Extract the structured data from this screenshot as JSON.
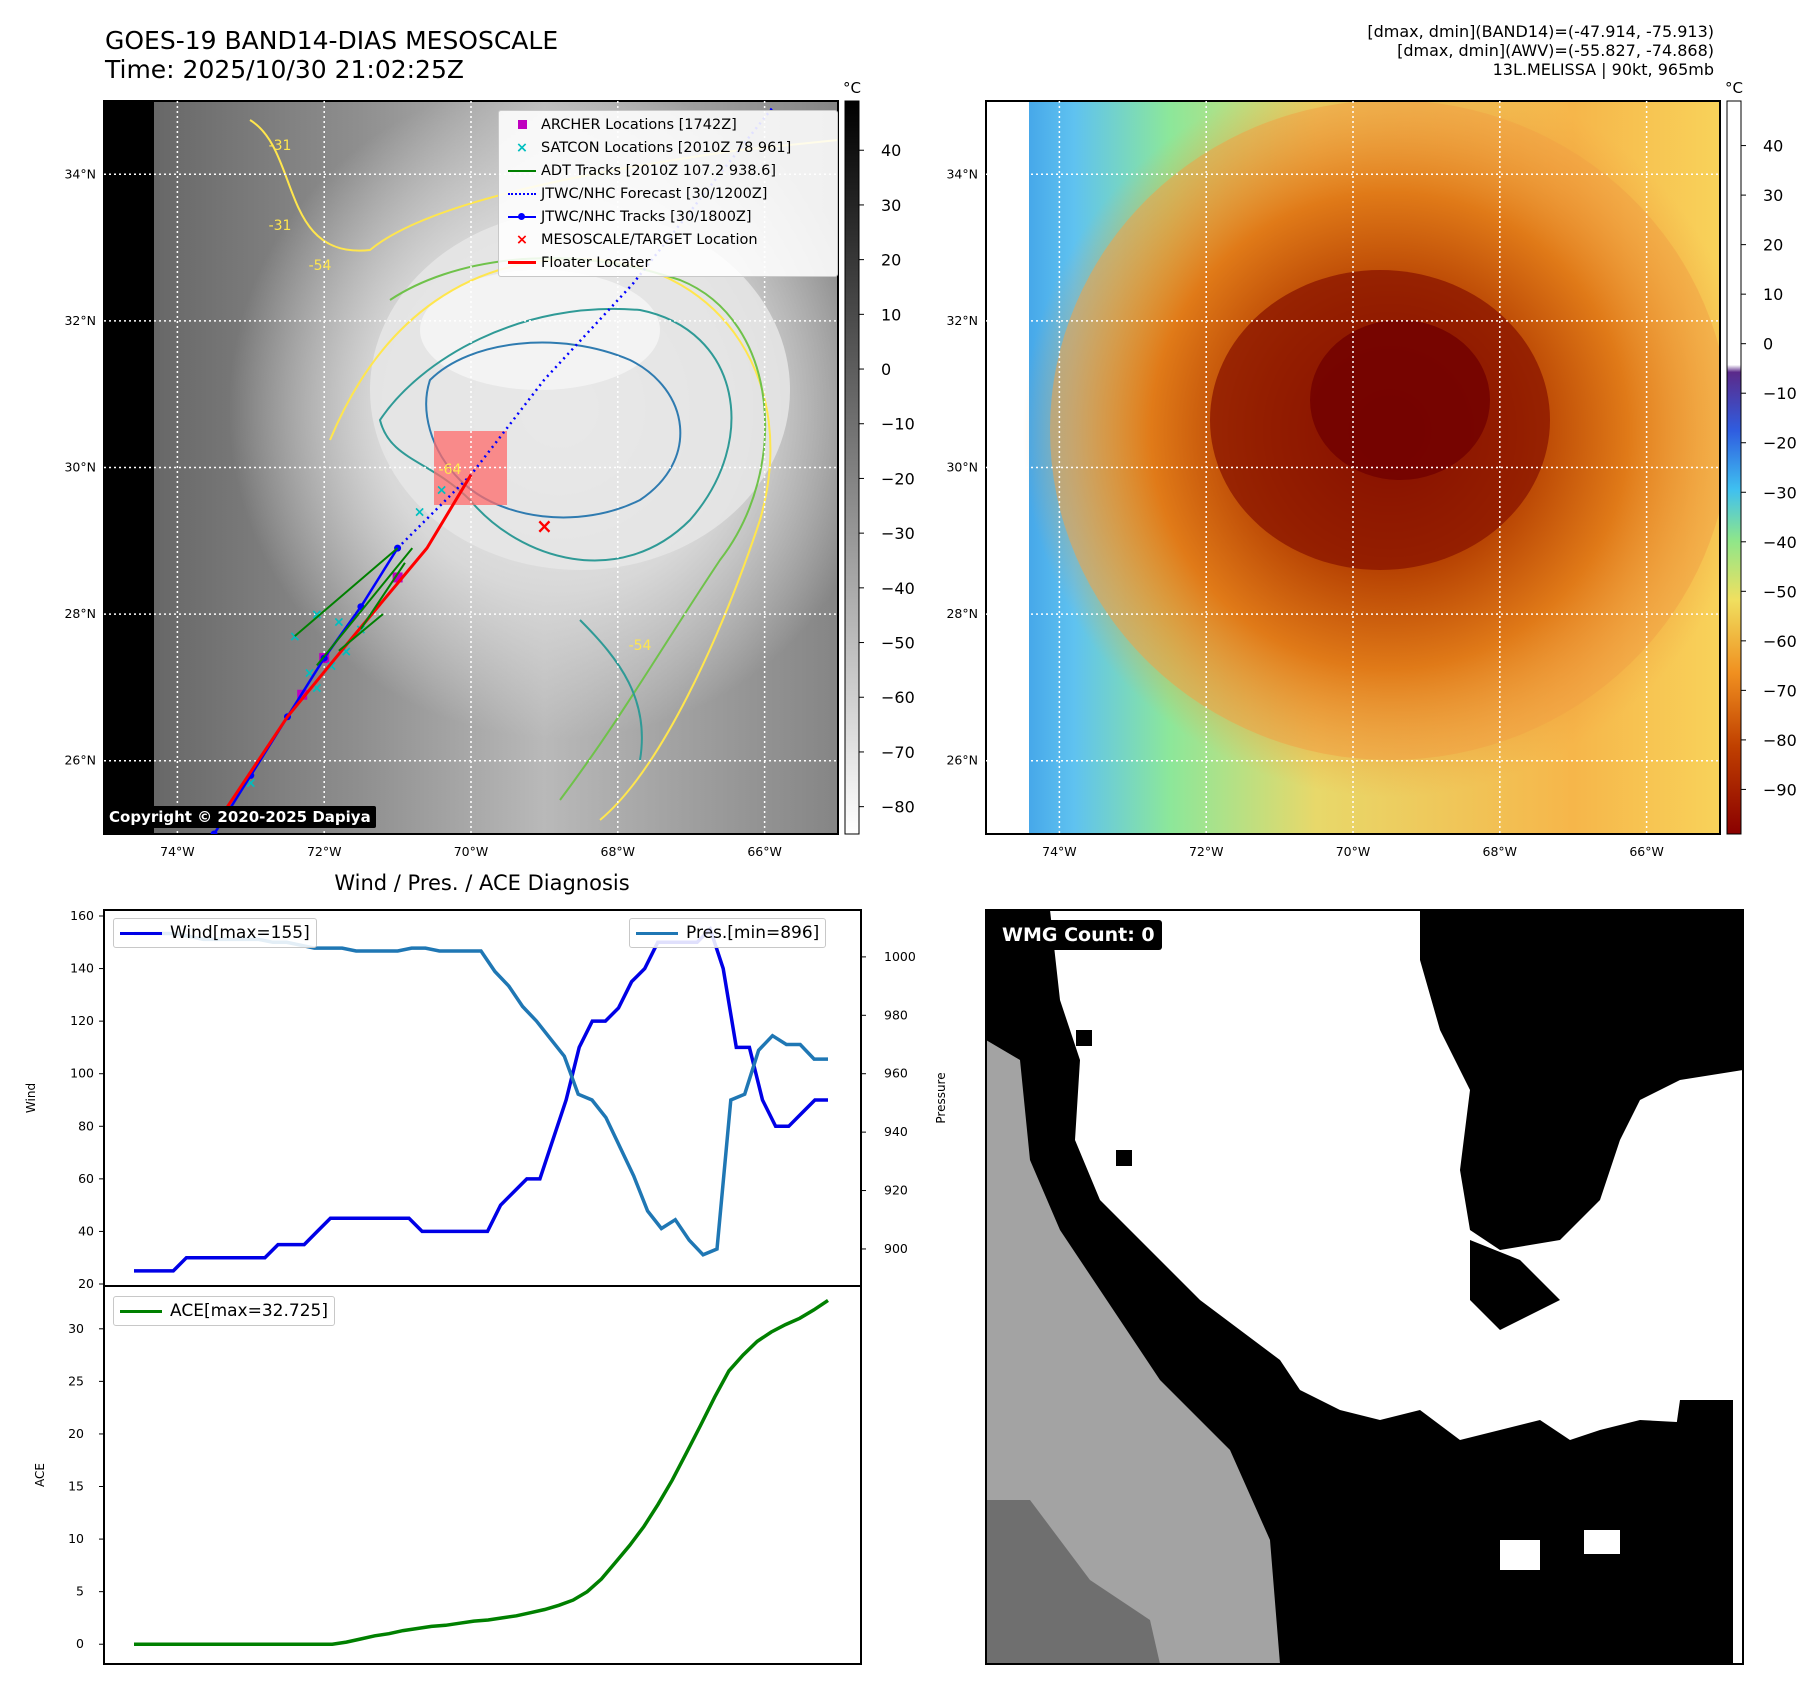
{
  "header": {
    "title_line1": "GOES-19 BAND14-DIAS MESOSCALE",
    "title_line2": "Time: 2025/10/30 21:02:25Z",
    "stats_line1": "[dmax, dmin](BAND14)=(-47.914, -75.913)",
    "stats_line2": "[dmax, dmin](AWV)=(-55.827, -74.868)",
    "stats_line3": "13L.MELISSA | 90kt, 965mb"
  },
  "map_axes": {
    "lon_ticks": [
      "74°W",
      "72°W",
      "70°W",
      "68°W",
      "66°W"
    ],
    "lat_ticks": [
      "34°N",
      "32°N",
      "30°N",
      "28°N",
      "26°N"
    ],
    "lon_range": [
      -75,
      -65
    ],
    "lat_range": [
      25,
      35
    ]
  },
  "ir_colorbar": {
    "unit": "°C",
    "ticks": [
      "40",
      "30",
      "20",
      "10",
      "0",
      "−10",
      "−20",
      "−30",
      "−40",
      "−50",
      "−60",
      "−70",
      "−80"
    ]
  },
  "awv_colorbar": {
    "unit": "°C",
    "ticks": [
      "40",
      "30",
      "20",
      "10",
      "0",
      "−10",
      "−20",
      "−30",
      "−40",
      "−50",
      "−60",
      "−70",
      "−80",
      "−90"
    ]
  },
  "contour_labels": [
    "-31",
    "-54",
    "-64",
    "-31",
    "-54"
  ],
  "legend": {
    "archer": "ARCHER Locations [1742Z]",
    "satcon": "SATCON Locations [2010Z 78 961]",
    "adt": "ADT Tracks [2010Z 107.2 938.6]",
    "forecast": "JTWC/NHC Forecast [30/1200Z]",
    "tracks": "JTWC/NHC Tracks [30/1800Z]",
    "target": "MESOSCALE/TARGET Location",
    "floater": "Floater Locater"
  },
  "legend_colors": {
    "archer": "#bf00bf",
    "satcon": "#00bfbf",
    "adt": "#008000",
    "forecast": "#0000ff",
    "tracks": "#0000ff",
    "target": "#ff0000",
    "floater": "#ff0000"
  },
  "copyright": "Copyright © 2020-2025 Dapiya",
  "diag": {
    "title": "Wind / Pres. / ACE Diagnosis",
    "wind_label": "Wind",
    "pressure_label": "Pressure",
    "ace_label": "ACE",
    "wind_legend": "Wind[max=155]",
    "pres_legend": "Pres.[min=896]",
    "ace_legend": "ACE[max=32.725]",
    "wind_ticks": [
      "160",
      "140",
      "120",
      "100",
      "80",
      "60",
      "40",
      "20"
    ],
    "pres_ticks": [
      "1000",
      "980",
      "960",
      "940",
      "920",
      "900"
    ],
    "ace_ticks": [
      "30",
      "25",
      "20",
      "15",
      "10",
      "5",
      "0"
    ]
  },
  "wmg": {
    "label": "WMG Count: 0"
  },
  "chart_data": [
    {
      "type": "line",
      "series": [
        {
          "name": "Wind[max=155]",
          "color": "#0000e6",
          "values": [
            25,
            25,
            25,
            25,
            30,
            30,
            30,
            30,
            30,
            30,
            30,
            35,
            35,
            35,
            40,
            45,
            45,
            45,
            45,
            45,
            45,
            45,
            40,
            40,
            40,
            40,
            40,
            40,
            50,
            55,
            60,
            60,
            75,
            90,
            110,
            120,
            120,
            125,
            135,
            140,
            150,
            150,
            150,
            150,
            155,
            140,
            110,
            110,
            90,
            80,
            80,
            85,
            90,
            90
          ]
        },
        {
          "name": "Pres.[min=896]",
          "color": "#1f77b4",
          "axis": "right",
          "values": [
            1008,
            1008,
            1008,
            1008,
            1007,
            1006,
            1006,
            1006,
            1006,
            1006,
            1005,
            1005,
            1004,
            1003,
            1003,
            1003,
            1002,
            1002,
            1002,
            1002,
            1003,
            1003,
            1002,
            1002,
            1002,
            1002,
            995,
            990,
            983,
            978,
            972,
            966,
            953,
            951,
            945,
            935,
            925,
            913,
            907,
            910,
            903,
            898,
            900,
            951,
            953,
            968,
            973,
            970,
            970,
            965,
            965
          ]
        }
      ],
      "ylim": [
        20,
        160
      ],
      "y2lim": [
        888,
        1014
      ]
    },
    {
      "type": "line",
      "series": [
        {
          "name": "ACE[max=32.725]",
          "color": "#008000",
          "values": [
            0,
            0,
            0,
            0,
            0,
            0,
            0,
            0,
            0,
            0,
            0,
            0,
            0,
            0,
            0,
            0.2,
            0.5,
            0.8,
            1.0,
            1.3,
            1.5,
            1.7,
            1.8,
            2.0,
            2.2,
            2.3,
            2.5,
            2.7,
            3.0,
            3.3,
            3.7,
            4.2,
            5.0,
            6.2,
            7.8,
            9.4,
            11.2,
            13.3,
            15.6,
            18.2,
            20.8,
            23.5,
            26.0,
            27.5,
            28.8,
            29.7,
            30.4,
            31.0,
            31.8,
            32.7
          ]
        }
      ],
      "ylim": [
        -1.5,
        33.5
      ]
    },
    {
      "type": "scatter",
      "series": [
        {
          "name": "ARCHER Locations [1742Z]",
          "color": "#bf00bf",
          "points": [
            [
              -71.0,
              28.5
            ],
            [
              -72.3,
              26.9
            ],
            [
              -72.0,
              27.4
            ]
          ]
        },
        {
          "name": "SATCON Locations [2010Z 78 961]",
          "color": "#00bfbf",
          "points": [
            [
              -72.4,
              27.7
            ],
            [
              -72.1,
              28.0
            ],
            [
              -71.8,
              27.9
            ],
            [
              -71.5,
              27.8
            ],
            [
              -72.2,
              27.2
            ],
            [
              -72.1,
              27.0
            ],
            [
              -71.9,
              27.3
            ],
            [
              -71.7,
              27.5
            ],
            [
              -73.0,
              25.7
            ],
            [
              -73.3,
              25.3
            ],
            [
              -70.4,
              29.7
            ],
            [
              -70.7,
              29.4
            ]
          ]
        },
        {
          "name": "JTWC/NHC Forecast [30/1200Z]",
          "color": "#0000ff",
          "points": [
            [
              -71.0,
              28.9
            ],
            [
              -70.0,
              29.9
            ],
            [
              -69.0,
              31.2
            ],
            [
              -67.8,
              32.5
            ],
            [
              -65.9,
              34.9
            ]
          ]
        },
        {
          "name": "JTWC/NHC Tracks [30/1800Z]",
          "color": "#0000ff",
          "points": [
            [
              -73.5,
              25.0
            ],
            [
              -73.0,
              25.8
            ],
            [
              -72.5,
              26.6
            ],
            [
              -72.0,
              27.4
            ],
            [
              -71.5,
              28.1
            ],
            [
              -71.0,
              28.9
            ]
          ]
        },
        {
          "name": "MESOSCALE/TARGET Location",
          "color": "#ff0000",
          "points": [
            [
              -69.0,
              29.2
            ]
          ]
        },
        {
          "name": "Floater Locater",
          "color": "#ff0000",
          "points": [
            [
              -73.5,
              25.1
            ],
            [
              -72.5,
              26.6
            ],
            [
              -71.6,
              27.7
            ],
            [
              -70.6,
              28.9
            ],
            [
              -70.0,
              29.9
            ]
          ]
        }
      ],
      "xlim": [
        -75,
        -65
      ],
      "ylim": [
        25,
        35
      ]
    }
  ]
}
